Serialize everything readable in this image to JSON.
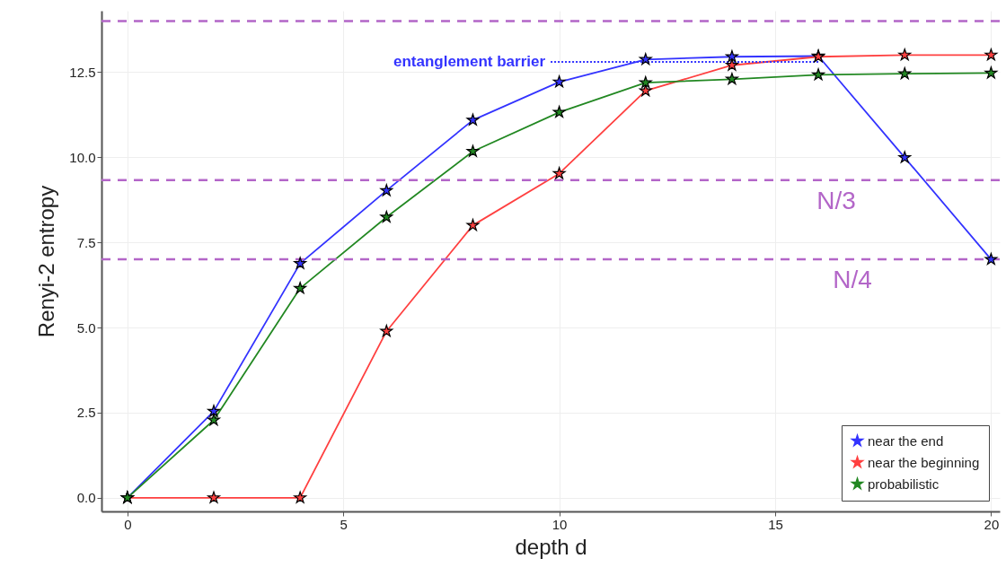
{
  "chart_data": {
    "type": "line",
    "xlabel": "depth d",
    "ylabel": "Renyi-2 entropy",
    "x": [
      0,
      2,
      4,
      6,
      8,
      10,
      12,
      14,
      16,
      18,
      20
    ],
    "series": [
      {
        "name": "near the end",
        "color": "#3333ff",
        "values": [
          0,
          2.54,
          6.88,
          9.02,
          11.09,
          12.21,
          12.87,
          12.95,
          12.97,
          9.99,
          7.0
        ]
      },
      {
        "name": "near the beginning",
        "color": "#ff4040",
        "values": [
          0,
          0,
          0,
          4.89,
          8.0,
          9.52,
          11.95,
          12.7,
          12.95,
          13.0,
          13.0
        ]
      },
      {
        "name": "probabilistic",
        "color": "#228822",
        "values": [
          0,
          2.28,
          6.15,
          8.24,
          10.17,
          11.32,
          12.19,
          12.29,
          12.42,
          12.45,
          12.47
        ]
      }
    ],
    "xlim": [
      -0.6,
      20.2
    ],
    "ylim": [
      -0.4,
      14.3
    ],
    "xticks": [
      0,
      5,
      10,
      15,
      20
    ],
    "yticks": [
      {
        "value": 0,
        "label": "0.0"
      },
      {
        "value": 2.5,
        "label": "2.5"
      },
      {
        "value": 5,
        "label": "5.0"
      },
      {
        "value": 7.5,
        "label": "7.5"
      },
      {
        "value": 10,
        "label": "10.0"
      },
      {
        "value": 12.5,
        "label": "12.5"
      }
    ],
    "ref_lines": [
      {
        "axis": "y",
        "value": 14,
        "color": "#b366c8",
        "line_style": "dashed"
      },
      {
        "axis": "y",
        "value": 9.33,
        "label": "N/3",
        "color": "#b366c8",
        "line_style": "dashed"
      },
      {
        "axis": "y",
        "value": 7,
        "label": "N/4",
        "color": "#b366c8",
        "line_style": "dashed"
      }
    ],
    "annotations": [
      {
        "text": "entanglement barrier",
        "x": 16,
        "y": 12.8
      }
    ],
    "grid": true,
    "legend": "bottom right",
    "marker": "star",
    "line_style": "solid"
  }
}
